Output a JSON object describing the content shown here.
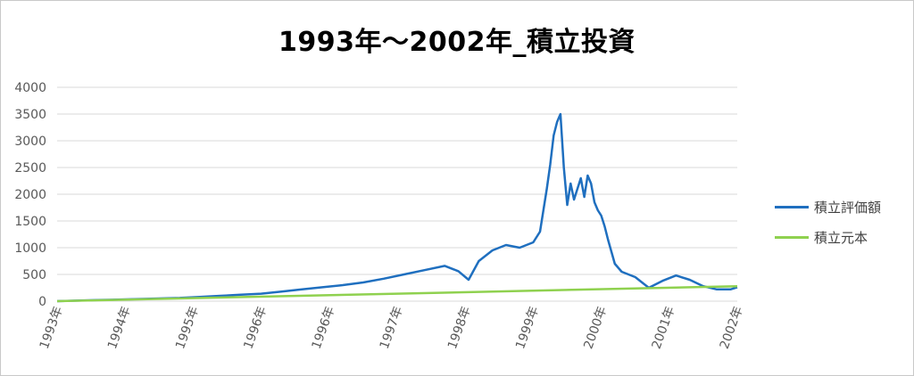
{
  "chart_data": {
    "type": "line",
    "title": "1993年～2002年_積立投資",
    "ylim": [
      0,
      4000
    ],
    "yticks": [
      0,
      500,
      1000,
      1500,
      2000,
      2500,
      3000,
      3500,
      4000
    ],
    "xlabels": [
      "1993年",
      "1994年",
      "1995年",
      "1996年",
      "1996年",
      "1997年",
      "1998年",
      "1999年",
      "2000年",
      "2001年",
      "2002年"
    ],
    "xrange": [
      0,
      10
    ],
    "grid": true,
    "legend_position": "right",
    "series": [
      {
        "name": "積立評価額",
        "color": "#1f6fbf",
        "x": [
          0,
          0.3,
          0.6,
          0.9,
          1.2,
          1.5,
          1.8,
          2.1,
          2.4,
          2.7,
          3.0,
          3.3,
          3.6,
          3.9,
          4.2,
          4.5,
          4.8,
          5.1,
          5.4,
          5.7,
          5.9,
          6.05,
          6.2,
          6.4,
          6.6,
          6.8,
          7.0,
          7.1,
          7.15,
          7.2,
          7.25,
          7.3,
          7.35,
          7.4,
          7.45,
          7.5,
          7.55,
          7.6,
          7.65,
          7.7,
          7.75,
          7.8,
          7.85,
          7.9,
          7.95,
          8.0,
          8.05,
          8.1,
          8.2,
          8.3,
          8.5,
          8.7,
          8.9,
          9.1,
          9.3,
          9.5,
          9.7,
          9.9,
          10.0
        ],
        "y": [
          0,
          10,
          20,
          30,
          40,
          50,
          60,
          80,
          100,
          120,
          140,
          180,
          220,
          260,
          300,
          350,
          420,
          500,
          580,
          660,
          560,
          400,
          750,
          950,
          1050,
          1000,
          1100,
          1300,
          1700,
          2100,
          2550,
          3100,
          3350,
          3500,
          2500,
          1800,
          2200,
          1900,
          2100,
          2300,
          1950,
          2350,
          2200,
          1850,
          1700,
          1600,
          1400,
          1150,
          700,
          550,
          450,
          250,
          380,
          480,
          400,
          280,
          220,
          220,
          260
        ]
      },
      {
        "name": "積立元本",
        "color": "#8fd14f",
        "x": [
          0,
          10
        ],
        "y": [
          0,
          280
        ]
      }
    ]
  }
}
